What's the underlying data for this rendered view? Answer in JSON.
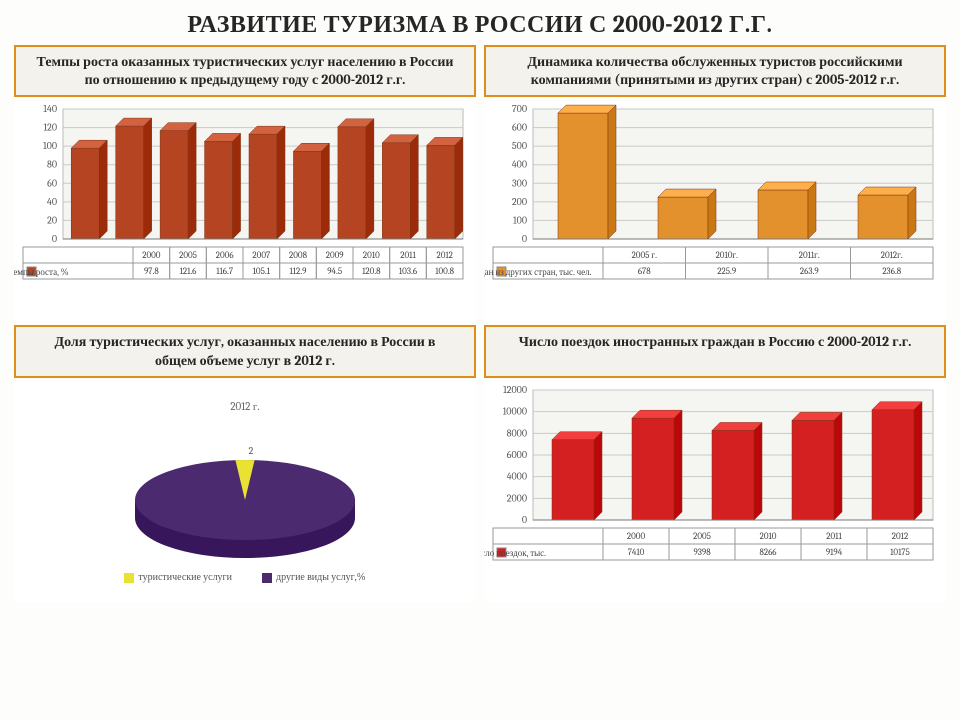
{
  "page": {
    "title": "РАЗВИТИЕ ТУРИЗМА В РОССИИ С 2000-2012 Г.Г."
  },
  "panels": {
    "tl": {
      "title": "Темпы роста оказанных туристических услуг населению в России по отношению к предыдущему году с 2000-2012 г.г.",
      "type": "bar",
      "categories": [
        "2000",
        "2005",
        "2006",
        "2007",
        "2008",
        "2009",
        "2010",
        "2011",
        "2012"
      ],
      "values": [
        97.8,
        121.6,
        116.7,
        105.1,
        112.9,
        94.5,
        120.8,
        103.6,
        100.8
      ],
      "ylim": [
        0,
        140
      ],
      "ytick_step": 20,
      "bar_color": "#b54423",
      "bg_color": "#ffffff",
      "grid_color": "#cfcfcf",
      "legend_label": "темпы роста, %"
    },
    "tr": {
      "title": "Динамика количества обслуженных туристов российскими компаниями (принятыми из других стран) с 2005-2012 г.г.",
      "type": "bar",
      "categories": [
        "2005 г.",
        "2010г.",
        "2011г.",
        "2012г."
      ],
      "values": [
        678,
        225.9,
        263.9,
        236.8
      ],
      "ylim": [
        0,
        700
      ],
      "ytick_step": 100,
      "bar_color": "#e3912c",
      "bg_color": "#ffffff",
      "grid_color": "#cfcfcf",
      "legend_label": "Принято граждан из других стран, тыс. чел."
    },
    "bl": {
      "title": "Доля туристических услуг, оказанных населению в России в общем объеме услуг в 2012 г.",
      "type": "pie",
      "caption": "2012 г.",
      "slices": [
        {
          "label": "туристические услуги",
          "value": 2,
          "color": "#e9e233"
        },
        {
          "label": "другие виды услуг,%",
          "value": 98,
          "color": "#4b2a6f"
        }
      ],
      "label_small": "2",
      "label_big": "98"
    },
    "br": {
      "title": "Число поездок иностранных граждан в Россию с 2000-2012  г.г.",
      "type": "bar",
      "categories": [
        "2000",
        "2005",
        "2010",
        "2011",
        "2012"
      ],
      "values": [
        7410,
        9398,
        8266,
        9194,
        10175
      ],
      "ylim": [
        0,
        12000
      ],
      "ytick_step": 2000,
      "bar_color": "#d42020",
      "bg_color": "#ffffff",
      "grid_color": "#cfcfcf",
      "legend_label": "число поездок, тыс."
    }
  }
}
